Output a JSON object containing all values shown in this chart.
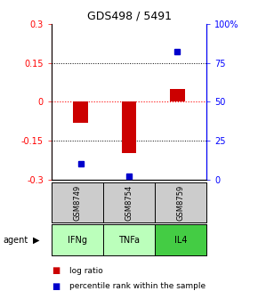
{
  "title": "GDS498 / 5491",
  "samples": [
    "GSM8749",
    "GSM8754",
    "GSM8759"
  ],
  "agents": [
    "IFNg",
    "TNFa",
    "IL4"
  ],
  "log_ratios": [
    -0.08,
    -0.2,
    0.05
  ],
  "percentile_ranks": [
    10,
    2,
    82
  ],
  "ylim_left": [
    -0.3,
    0.3
  ],
  "ylim_right": [
    0,
    100
  ],
  "hlines_dotted": [
    -0.15,
    0.15
  ],
  "hline_dashed_color": "red",
  "bar_color": "#cc0000",
  "point_color": "#0000cc",
  "sample_bg": "#cccccc",
  "agent_colors": [
    "#bbffbb",
    "#bbffbb",
    "#44cc44"
  ],
  "legend_bar_label": "log ratio",
  "legend_point_label": "percentile rank within the sample",
  "title_fontsize": 9
}
